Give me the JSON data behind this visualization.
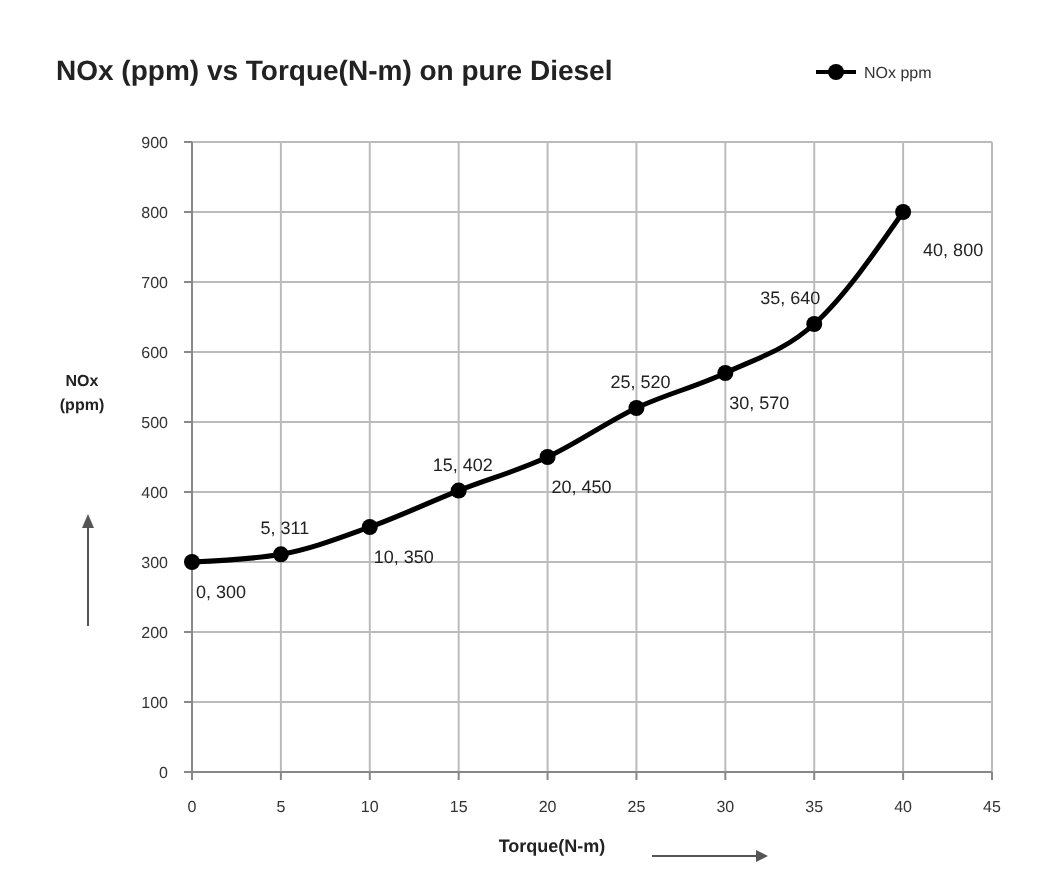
{
  "chart_data": {
    "type": "line",
    "title": "NOx (ppm) vs Torque(N-m) on pure Diesel",
    "xlabel": "Torque(N-m)",
    "ylabel": "NOx (ppm)",
    "x": [
      0,
      5,
      10,
      15,
      20,
      25,
      30,
      35,
      40
    ],
    "series": [
      {
        "name": "NOx ppm",
        "color": "#000000",
        "values": [
          300,
          311,
          350,
          402,
          450,
          520,
          570,
          640,
          800
        ],
        "value_labels": [
          "0, 300",
          "5, 311",
          "10, 350",
          "15, 402",
          "20, 450",
          "25, 520",
          "30, 570",
          "35, 640",
          "40, 800"
        ]
      }
    ],
    "xlim": [
      0,
      45
    ],
    "xticks": [
      0,
      5,
      10,
      15,
      20,
      25,
      30,
      35,
      40,
      45
    ],
    "ylim": [
      0,
      900
    ],
    "yticks": [
      0,
      100,
      200,
      300,
      400,
      500,
      600,
      700,
      800,
      900
    ],
    "grid": true,
    "legend": "top right",
    "marker": "circle",
    "line_style": "solid"
  }
}
